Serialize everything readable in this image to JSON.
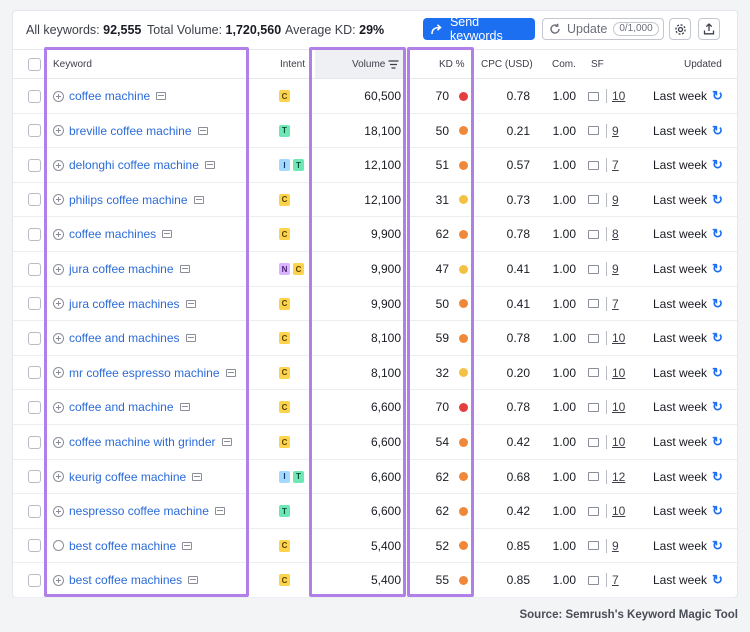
{
  "summary": {
    "all_keywords_label": "All keywords:",
    "all_keywords_value": "92,555",
    "total_volume_label": "Total Volume:",
    "total_volume_value": "1,720,560",
    "avg_kd_label": "Average KD:",
    "avg_kd_value": "29%"
  },
  "toolbar": {
    "send_label": "Send keywords",
    "update_label": "Update",
    "update_count": "0/1,000"
  },
  "columns": {
    "keyword": "Keyword",
    "intent": "Intent",
    "volume": "Volume",
    "kd": "KD %",
    "cpc": "CPC (USD)",
    "com": "Com.",
    "sf": "SF",
    "updated": "Updated"
  },
  "rows": [
    {
      "keyword": "coffee machine",
      "intent": [
        "C"
      ],
      "volume": "60,500",
      "kd": "70",
      "kd_color": "#e53e3e",
      "cpc": "0.78",
      "com": "1.00",
      "sf": "10",
      "updated": "Last week",
      "icon": "plus"
    },
    {
      "keyword": "breville coffee machine",
      "intent": [
        "T"
      ],
      "volume": "18,100",
      "kd": "50",
      "kd_color": "#f0883a",
      "cpc": "0.21",
      "com": "1.00",
      "sf": "9",
      "updated": "Last week",
      "icon": "plus"
    },
    {
      "keyword": "delonghi coffee machine",
      "intent": [
        "I",
        "T"
      ],
      "volume": "12,100",
      "kd": "51",
      "kd_color": "#f0883a",
      "cpc": "0.57",
      "com": "1.00",
      "sf": "7",
      "updated": "Last week",
      "icon": "plus"
    },
    {
      "keyword": "philips coffee machine",
      "intent": [
        "C"
      ],
      "volume": "12,100",
      "kd": "31",
      "kd_color": "#f5c142",
      "cpc": "0.73",
      "com": "1.00",
      "sf": "9",
      "updated": "Last week",
      "icon": "plus"
    },
    {
      "keyword": "coffee machines",
      "intent": [
        "C"
      ],
      "volume": "9,900",
      "kd": "62",
      "kd_color": "#f0883a",
      "cpc": "0.78",
      "com": "1.00",
      "sf": "8",
      "updated": "Last week",
      "icon": "plus"
    },
    {
      "keyword": "jura coffee machine",
      "intent": [
        "N",
        "C"
      ],
      "volume": "9,900",
      "kd": "47",
      "kd_color": "#f5c142",
      "cpc": "0.41",
      "com": "1.00",
      "sf": "9",
      "updated": "Last week",
      "icon": "plus"
    },
    {
      "keyword": "jura coffee machines",
      "intent": [
        "C"
      ],
      "volume": "9,900",
      "kd": "50",
      "kd_color": "#f0883a",
      "cpc": "0.41",
      "com": "1.00",
      "sf": "7",
      "updated": "Last week",
      "icon": "plus"
    },
    {
      "keyword": "coffee and machines",
      "intent": [
        "C"
      ],
      "volume": "8,100",
      "kd": "59",
      "kd_color": "#f0883a",
      "cpc": "0.78",
      "com": "1.00",
      "sf": "10",
      "updated": "Last week",
      "icon": "plus"
    },
    {
      "keyword": "mr coffee espresso machine",
      "intent": [
        "C"
      ],
      "volume": "8,100",
      "kd": "32",
      "kd_color": "#f5c142",
      "cpc": "0.20",
      "com": "1.00",
      "sf": "10",
      "updated": "Last week",
      "icon": "plus"
    },
    {
      "keyword": "coffee and machine",
      "intent": [
        "C"
      ],
      "volume": "6,600",
      "kd": "70",
      "kd_color": "#e53e3e",
      "cpc": "0.78",
      "com": "1.00",
      "sf": "10",
      "updated": "Last week",
      "icon": "plus"
    },
    {
      "keyword": "coffee machine with grinder",
      "intent": [
        "C"
      ],
      "volume": "6,600",
      "kd": "54",
      "kd_color": "#f0883a",
      "cpc": "0.42",
      "com": "1.00",
      "sf": "10",
      "updated": "Last week",
      "icon": "plus"
    },
    {
      "keyword": "keurig coffee machine",
      "intent": [
        "I",
        "T"
      ],
      "volume": "6,600",
      "kd": "62",
      "kd_color": "#f0883a",
      "cpc": "0.68",
      "com": "1.00",
      "sf": "12",
      "updated": "Last week",
      "icon": "plus"
    },
    {
      "keyword": "nespresso coffee machine",
      "intent": [
        "T"
      ],
      "volume": "6,600",
      "kd": "62",
      "kd_color": "#f0883a",
      "cpc": "0.42",
      "com": "1.00",
      "sf": "10",
      "updated": "Last week",
      "icon": "plus"
    },
    {
      "keyword": "best coffee machine",
      "intent": [
        "C"
      ],
      "volume": "5,400",
      "kd": "52",
      "kd_color": "#f0883a",
      "cpc": "0.85",
      "com": "1.00",
      "sf": "9",
      "updated": "Last week",
      "icon": "check"
    },
    {
      "keyword": "best coffee machines",
      "intent": [
        "C"
      ],
      "volume": "5,400",
      "kd": "55",
      "kd_color": "#f0883a",
      "cpc": "0.85",
      "com": "1.00",
      "sf": "7",
      "updated": "Last week",
      "icon": "plus"
    }
  ],
  "colors": {
    "accent": "#1d6ff2",
    "highlight": "#b07fe8",
    "kd_red": "#e53e3e",
    "kd_orange": "#f0883a",
    "kd_yellow": "#f5c142"
  },
  "footer": {
    "source": "Source: Semrush's Keyword Magic Tool"
  }
}
